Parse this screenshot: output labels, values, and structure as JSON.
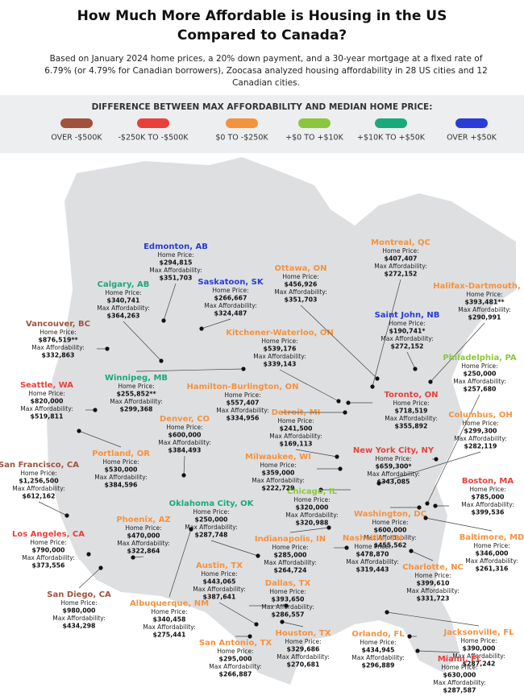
{
  "header": {
    "title": "How Much More Affordable is Housing in the US Compared to Canada?",
    "subtitle": "Based on January 2024 home prices, a 20% down payment, and a 30-year mortgage at a fixed rate of 6.79% (or 4.79% for Canadian borrowers), Zoocasa analyzed housing affordability in 28 US cities and 12 Canadian cities."
  },
  "legend": {
    "title": "DIFFERENCE BETWEEN MAX AFFORDABILITY AND MEDIAN HOME PRICE:",
    "items": [
      {
        "label": "OVER -$500K",
        "color": "#a0523d"
      },
      {
        "label": "-$250K TO -$500K",
        "color": "#e8413a"
      },
      {
        "label": "$0 TO -$250K",
        "color": "#f5923e"
      },
      {
        "label": "+$0 TO +$10K",
        "color": "#8cc63f"
      },
      {
        "label": "+$10K TO +$50K",
        "color": "#1aa97a"
      },
      {
        "label": "OVER +$50K",
        "color": "#2b3bd6"
      }
    ]
  },
  "field_labels": {
    "home_price": "Home Price:",
    "max_affordability": "Max Affordability:"
  },
  "cities": [
    {
      "name": "Edmonton, AB",
      "home_price": "$294,815",
      "max_affordability": "$351,703",
      "color": "#2b3bd6"
    },
    {
      "name": "Calgary, AB",
      "home_price": "$340,741",
      "max_affordability": "$364,263",
      "color": "#1aa97a"
    },
    {
      "name": "Saskatoon, SK",
      "home_price": "$266,667",
      "max_affordability": "$324,487",
      "color": "#2b3bd6"
    },
    {
      "name": "Vancouver, BC",
      "home_price": "$876,519**",
      "max_affordability": "$332,863",
      "color": "#a0523d"
    },
    {
      "name": "Seattle, WA",
      "home_price": "$820,000",
      "max_affordability": "$519,811",
      "color": "#e8413a"
    },
    {
      "name": "Winnipeg, MB",
      "home_price": "$255,852**",
      "max_affordability": "$299,368",
      "color": "#1aa97a"
    },
    {
      "name": "Denver, CO",
      "home_price": "$600,000",
      "max_affordability": "$384,493",
      "color": "#f5923e"
    },
    {
      "name": "Portland, OR",
      "home_price": "$530,000",
      "max_affordability": "$384,596",
      "color": "#f5923e"
    },
    {
      "name": "San Francisco, CA",
      "home_price": "$1,256,500",
      "max_affordability": "$612,162",
      "color": "#a0523d"
    },
    {
      "name": "Oklahoma City, OK",
      "home_price": "$250,000",
      "max_affordability": "$287,748",
      "color": "#1aa97a"
    },
    {
      "name": "Phoenix, AZ",
      "home_price": "$470,000",
      "max_affordability": "$322,864",
      "color": "#f5923e"
    },
    {
      "name": "Los Angeles, CA",
      "home_price": "$790,000",
      "max_affordability": "$373,556",
      "color": "#e8413a"
    },
    {
      "name": "San Diego, CA",
      "home_price": "$980,000",
      "max_affordability": "$434,298",
      "color": "#a0523d"
    },
    {
      "name": "Albuquerque, NM",
      "home_price": "$340,458",
      "max_affordability": "$275,441",
      "color": "#f5923e"
    },
    {
      "name": "Austin, TX",
      "home_price": "$443,065",
      "max_affordability": "$387,641",
      "color": "#f5923e"
    },
    {
      "name": "San Antonio, TX",
      "home_price": "$295,000",
      "max_affordability": "$266,887",
      "color": "#f5923e"
    },
    {
      "name": "Dallas, TX",
      "home_price": "$393,650",
      "max_affordability": "$286,557",
      "color": "#f5923e"
    },
    {
      "name": "Houston, TX",
      "home_price": "$329,686",
      "max_affordability": "$270,681",
      "color": "#f5923e"
    },
    {
      "name": "Indianapolis, IN",
      "home_price": "$285,000",
      "max_affordability": "$264,724",
      "color": "#f5923e"
    },
    {
      "name": "Chicago, IL",
      "home_price": "$320,000",
      "max_affordability": "$320,988",
      "color": "#8cc63f"
    },
    {
      "name": "Milwaukee, WI",
      "home_price": "$359,000",
      "max_affordability": "$222,729",
      "color": "#f5923e"
    },
    {
      "name": "Detroit, MI",
      "home_price": "$241,500",
      "max_affordability": "$169,113",
      "color": "#f5923e"
    },
    {
      "name": "Hamilton-Burlington, ON",
      "home_price": "$557,407",
      "max_affordability": "$334,956",
      "color": "#f5923e"
    },
    {
      "name": "Kitchener-Waterloo, ON",
      "home_price": "$539,176",
      "max_affordability": "$339,143",
      "color": "#f5923e"
    },
    {
      "name": "Ottawa, ON",
      "home_price": "$456,926",
      "max_affordability": "$351,703",
      "color": "#f5923e"
    },
    {
      "name": "Montreal, QC",
      "home_price": "$407,407",
      "max_affordability": "$272,152",
      "color": "#f5923e"
    },
    {
      "name": "Halifax-Dartmouth, NS",
      "home_price": "$393,481**",
      "max_affordability": "$290,991",
      "color": "#f5923e"
    },
    {
      "name": "Saint John, NB",
      "home_price": "$190,741*",
      "max_affordability": "$272,152",
      "color": "#2b3bd6"
    },
    {
      "name": "Philadelphia, PA",
      "home_price": "$250,000",
      "max_affordability": "$257,680",
      "color": "#8cc63f"
    },
    {
      "name": "Toronto, ON",
      "home_price": "$718,519",
      "max_affordability": "$355,892",
      "color": "#e8413a"
    },
    {
      "name": "Columbus, OH",
      "home_price": "$299,300",
      "max_affordability": "$282,119",
      "color": "#f5923e"
    },
    {
      "name": "New York City, NY",
      "home_price": "$659,300*",
      "max_affordability": "$343,085",
      "color": "#e8413a"
    },
    {
      "name": "Boston, MA",
      "home_price": "$785,000",
      "max_affordability": "$399,536",
      "color": "#e8413a"
    },
    {
      "name": "Washington, DC",
      "home_price": "$600,000",
      "max_affordability": "$455,562",
      "color": "#f5923e"
    },
    {
      "name": "Baltimore, MD",
      "home_price": "$346,000",
      "max_affordability": "$261,316",
      "color": "#f5923e"
    },
    {
      "name": "Nashville, TN",
      "home_price": "$478,870",
      "max_affordability": "$319,443",
      "color": "#f5923e"
    },
    {
      "name": "Charlotte, NC",
      "home_price": "$399,610",
      "max_affordability": "$331,723",
      "color": "#f5923e"
    },
    {
      "name": "Jacksonville, FL",
      "home_price": "$390,000",
      "max_affordability": "$287,242",
      "color": "#f5923e"
    },
    {
      "name": "Orlando, FL",
      "home_price": "$434,945",
      "max_affordability": "$296,889",
      "color": "#f5923e"
    },
    {
      "name": "Miami, FL",
      "home_price": "$630,000",
      "max_affordability": "$287,587",
      "color": "#e8413a"
    }
  ]
}
